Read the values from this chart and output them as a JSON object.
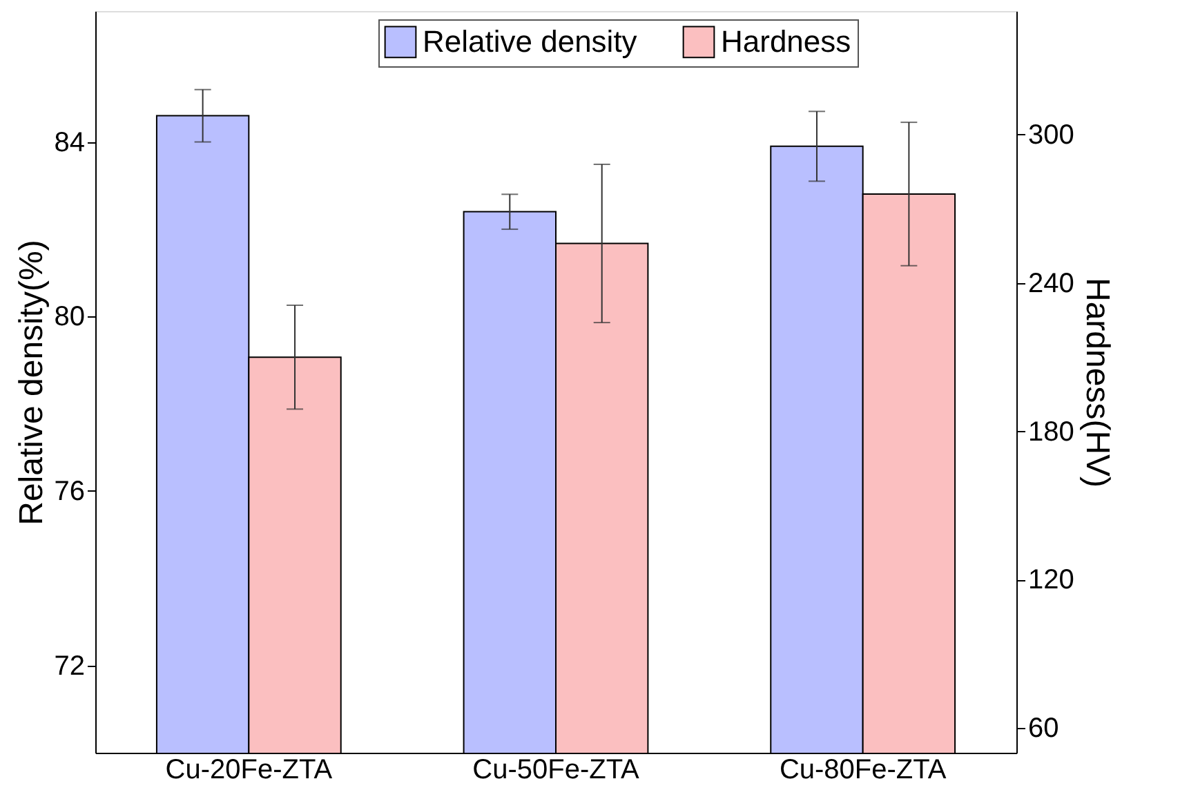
{
  "chart_data": {
    "type": "bar",
    "categories": [
      "Cu-20Fe-ZTA",
      "Cu-50Fe-ZTA",
      "Cu-80Fe-ZTA"
    ],
    "ylabel": "Relative density(%)",
    "y2label": "Hardness(HV)",
    "ylim": [
      70,
      87
    ],
    "yticks": [
      72,
      76,
      80,
      84
    ],
    "y2lim": [
      50,
      350
    ],
    "y2ticks": [
      60,
      120,
      180,
      240,
      300
    ],
    "grid": false,
    "legend": "top",
    "series": [
      {
        "name": "Relative density",
        "color": "#b9bfff",
        "values": [
          84.6,
          82.4,
          83.9
        ],
        "errors": [
          0.6,
          0.4,
          0.8
        ]
      },
      {
        "name": "Hardness",
        "color": "#fbbfc0",
        "axis": "y2",
        "values": [
          210,
          256,
          276
        ],
        "errors": [
          21,
          32,
          29
        ]
      }
    ]
  }
}
